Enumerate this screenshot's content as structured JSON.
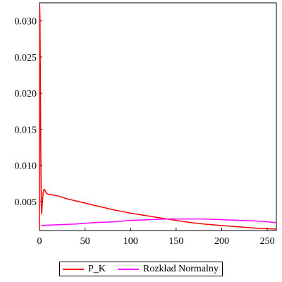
{
  "chart_data": {
    "type": "line",
    "title": "",
    "xlabel": "",
    "ylabel": "",
    "xlim": [
      0,
      260
    ],
    "ylim": [
      0.001,
      0.0325
    ],
    "x_ticks": [
      0,
      50,
      100,
      150,
      200,
      250
    ],
    "y_ticks": [
      0.005,
      0.01,
      0.015,
      0.02,
      0.025,
      0.03
    ],
    "x_tick_labels": [
      "0",
      "50",
      "100",
      "150",
      "200",
      "250"
    ],
    "y_tick_labels": [
      "0.005",
      "0.010",
      "0.015",
      "0.020",
      "0.025",
      "0.030"
    ],
    "grid": false,
    "legend_position": "bottom",
    "series": [
      {
        "name": "P_K",
        "color": "#ff0000",
        "x": [
          0,
          0.3,
          0.6,
          1,
          1.5,
          2,
          2.5,
          3,
          4,
          5,
          6,
          7,
          8,
          10,
          12,
          15,
          20,
          30,
          40,
          50,
          60,
          80,
          100,
          120,
          140,
          160,
          180,
          200,
          220,
          240,
          260
        ],
        "y": [
          0.0012,
          0.032,
          0.03,
          0.022,
          0.011,
          0.0045,
          0.0033,
          0.0046,
          0.0062,
          0.0067,
          0.0066,
          0.0063,
          0.0061,
          0.006,
          0.006,
          0.0059,
          0.0058,
          0.0054,
          0.0051,
          0.0048,
          0.0045,
          0.0039,
          0.0034,
          0.003,
          0.0026,
          0.0022,
          0.0019,
          0.0017,
          0.0015,
          0.0013,
          0.0012
        ]
      },
      {
        "name": "Rozkład Normalny",
        "color": "#ff00ff",
        "x": [
          2,
          20,
          40,
          60,
          80,
          100,
          120,
          140,
          160,
          180,
          200,
          220,
          240,
          260
        ],
        "y": [
          0.0017,
          0.0018,
          0.0019,
          0.0021,
          0.0022,
          0.0024,
          0.0025,
          0.0026,
          0.0026,
          0.0026,
          0.0025,
          0.0024,
          0.0023,
          0.0021
        ]
      }
    ]
  }
}
